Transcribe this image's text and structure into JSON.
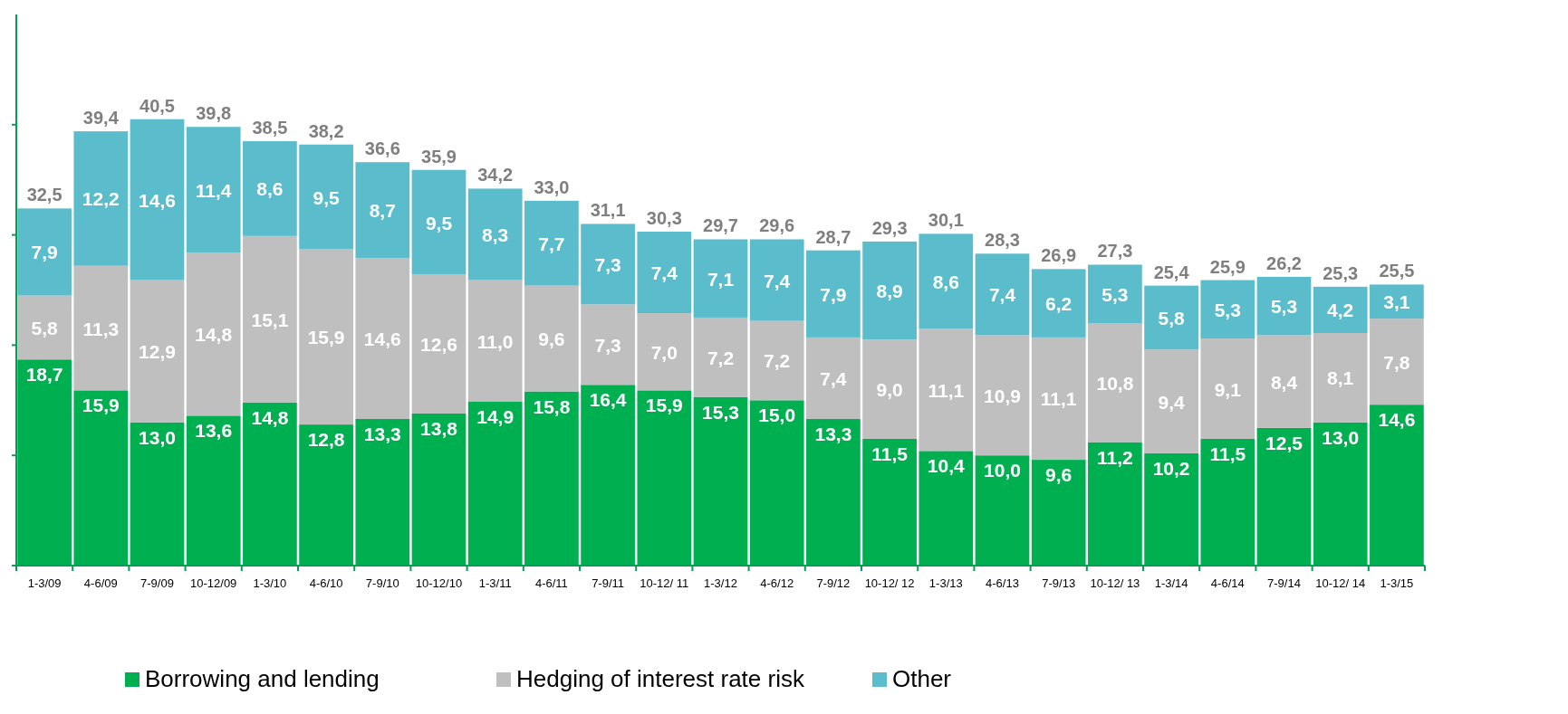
{
  "chart_data": {
    "type": "bar",
    "stacked": true,
    "categories": [
      "1-3/09",
      "4-6/09",
      "7-9/09",
      "10-12/09",
      "1-3/10",
      "4-6/10",
      "7-9/10",
      "10-12/10",
      "1-3/11",
      "4-6/11",
      "7-9/11",
      "10-12/ 11",
      "1-3/12",
      "4-6/12",
      "7-9/12",
      "10-12/ 12",
      "1-3/13",
      "4-6/13",
      "7-9/13",
      "10-12/ 13",
      "1-3/14",
      "4-6/14",
      "7-9/14",
      "10-12/ 14",
      "1-3/15"
    ],
    "series": [
      {
        "name": "Borrowing and lending",
        "color": "#00b050",
        "values": [
          18.7,
          15.9,
          13.0,
          13.6,
          14.8,
          12.8,
          13.3,
          13.8,
          14.9,
          15.8,
          16.4,
          15.9,
          15.3,
          15.0,
          13.3,
          11.5,
          10.4,
          10.0,
          9.6,
          11.2,
          10.2,
          11.5,
          12.5,
          13.0,
          14.6
        ],
        "value_labels": [
          "18,7",
          "15,9",
          "13,0",
          "13,6",
          "14,8",
          "12,8",
          "13,3",
          "13,8",
          "14,9",
          "15,8",
          "16,4",
          "15,9",
          "15,3",
          "15,0",
          "13,3",
          "11,5",
          "10,4",
          "10,0",
          "9,6",
          "11,2",
          "10,2",
          "11,5",
          "12,5",
          "13,0",
          "14,6"
        ]
      },
      {
        "name": "Hedging of interest rate risk",
        "color": "#bfbfbf",
        "values": [
          5.8,
          11.3,
          12.9,
          14.8,
          15.1,
          15.9,
          14.6,
          12.6,
          11.0,
          9.6,
          7.3,
          7.0,
          7.2,
          7.2,
          7.4,
          9.0,
          11.1,
          10.9,
          11.1,
          10.8,
          9.4,
          9.1,
          8.4,
          8.1,
          7.8
        ],
        "value_labels": [
          "5,8",
          "11,3",
          "12,9",
          "14,8",
          "15,1",
          "15,9",
          "14,6",
          "12,6",
          "11,0",
          "9,6",
          "7,3",
          "7,0",
          "7,2",
          "7,2",
          "7,4",
          "9,0",
          "11,1",
          "10,9",
          "11,1",
          "10,8",
          "9,4",
          "9,1",
          "8,4",
          "8,1",
          "7,8"
        ]
      },
      {
        "name": "Other",
        "color": "#5bbccc",
        "values": [
          7.9,
          12.2,
          14.6,
          11.4,
          8.6,
          9.5,
          8.7,
          9.5,
          8.3,
          7.7,
          7.3,
          7.4,
          7.1,
          7.4,
          7.9,
          8.9,
          8.6,
          7.4,
          6.2,
          5.3,
          5.8,
          5.3,
          5.3,
          4.2,
          3.1
        ],
        "value_labels": [
          "7,9",
          "12,2",
          "14,6",
          "11,4",
          "8,6",
          "9,5",
          "8,7",
          "9,5",
          "8,3",
          "7,7",
          "7,3",
          "7,4",
          "7,1",
          "7,4",
          "7,9",
          "8,9",
          "8,6",
          "7,4",
          "6,2",
          "5,3",
          "5,8",
          "5,3",
          "5,3",
          "4,2",
          "3,1"
        ]
      }
    ],
    "totals": [
      "32,5",
      "39,4",
      "40,5",
      "39,8",
      "38,5",
      "38,2",
      "36,6",
      "35,9",
      "34,2",
      "33,0",
      "31,1",
      "30,3",
      "29,7",
      "29,6",
      "28,7",
      "29,3",
      "30,1",
      "28,3",
      "26,9",
      "27,3",
      "25,4",
      "25,9",
      "26,2",
      "25,3",
      "25,5"
    ],
    "ylim": [
      0,
      50
    ],
    "yticks": [
      {
        "value": 0,
        "label": null
      },
      {
        "value": 10,
        "label": null
      },
      {
        "value": 20,
        "label": null
      },
      {
        "value": 30,
        "label": null
      },
      {
        "value": 40,
        "label": null
      }
    ],
    "tick_labels": "x",
    "legend": "bottom",
    "grid": false
  }
}
